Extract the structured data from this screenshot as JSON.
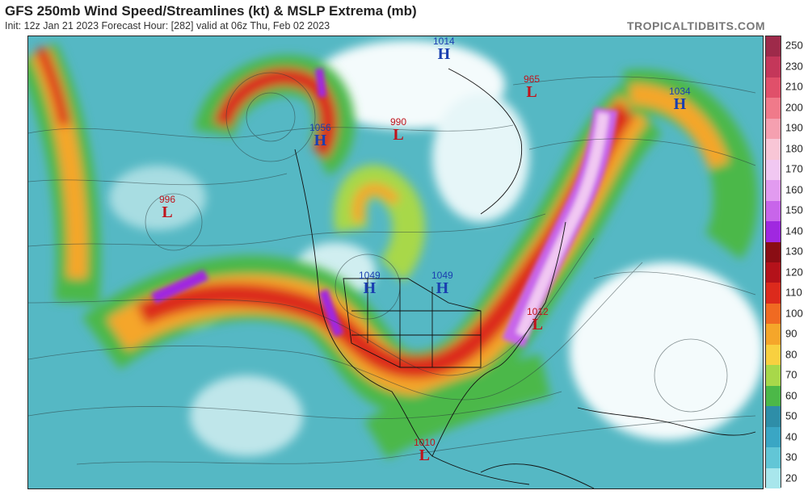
{
  "header": {
    "title": "GFS 250mb Wind Speed/Streamlines (kt) & MSLP Extrema (mb)",
    "subtitle": "Init: 12z Jan 21 2023   Forecast Hour: [282]   valid at 06z Thu, Feb 02 2023",
    "brand": "TROPICALTIDBITS.COM"
  },
  "colorbar": {
    "labels": [
      "250",
      "230",
      "210",
      "200",
      "190",
      "180",
      "170",
      "160",
      "150",
      "140",
      "130",
      "120",
      "110",
      "100",
      "90",
      "80",
      "70",
      "60",
      "50",
      "40",
      "30",
      "20"
    ],
    "colors": [
      "#9e2a4a",
      "#c4375a",
      "#e0506a",
      "#f07a8a",
      "#f5a0b0",
      "#f8c6d6",
      "#f1c8f2",
      "#e29bf0",
      "#c865ea",
      "#a028e0",
      "#8a0d14",
      "#b4121a",
      "#dc2a1c",
      "#f06a22",
      "#f5a62a",
      "#f8d040",
      "#a8d84a",
      "#4cb848",
      "#2e8ea8",
      "#3aa6c4",
      "#62c6d6",
      "#a8e6ec"
    ]
  },
  "markers": [
    {
      "type": "H",
      "value": "1014"
    },
    {
      "type": "L",
      "value": "965"
    },
    {
      "type": "H",
      "value": "1034"
    },
    {
      "type": "H",
      "value": "1056"
    },
    {
      "type": "L",
      "value": "990"
    },
    {
      "type": "L",
      "value": "996"
    },
    {
      "type": "H",
      "value": "1049"
    },
    {
      "type": "H",
      "value": "1049"
    },
    {
      "type": "L",
      "value": "1012"
    },
    {
      "type": "L",
      "value": "1010"
    }
  ]
}
